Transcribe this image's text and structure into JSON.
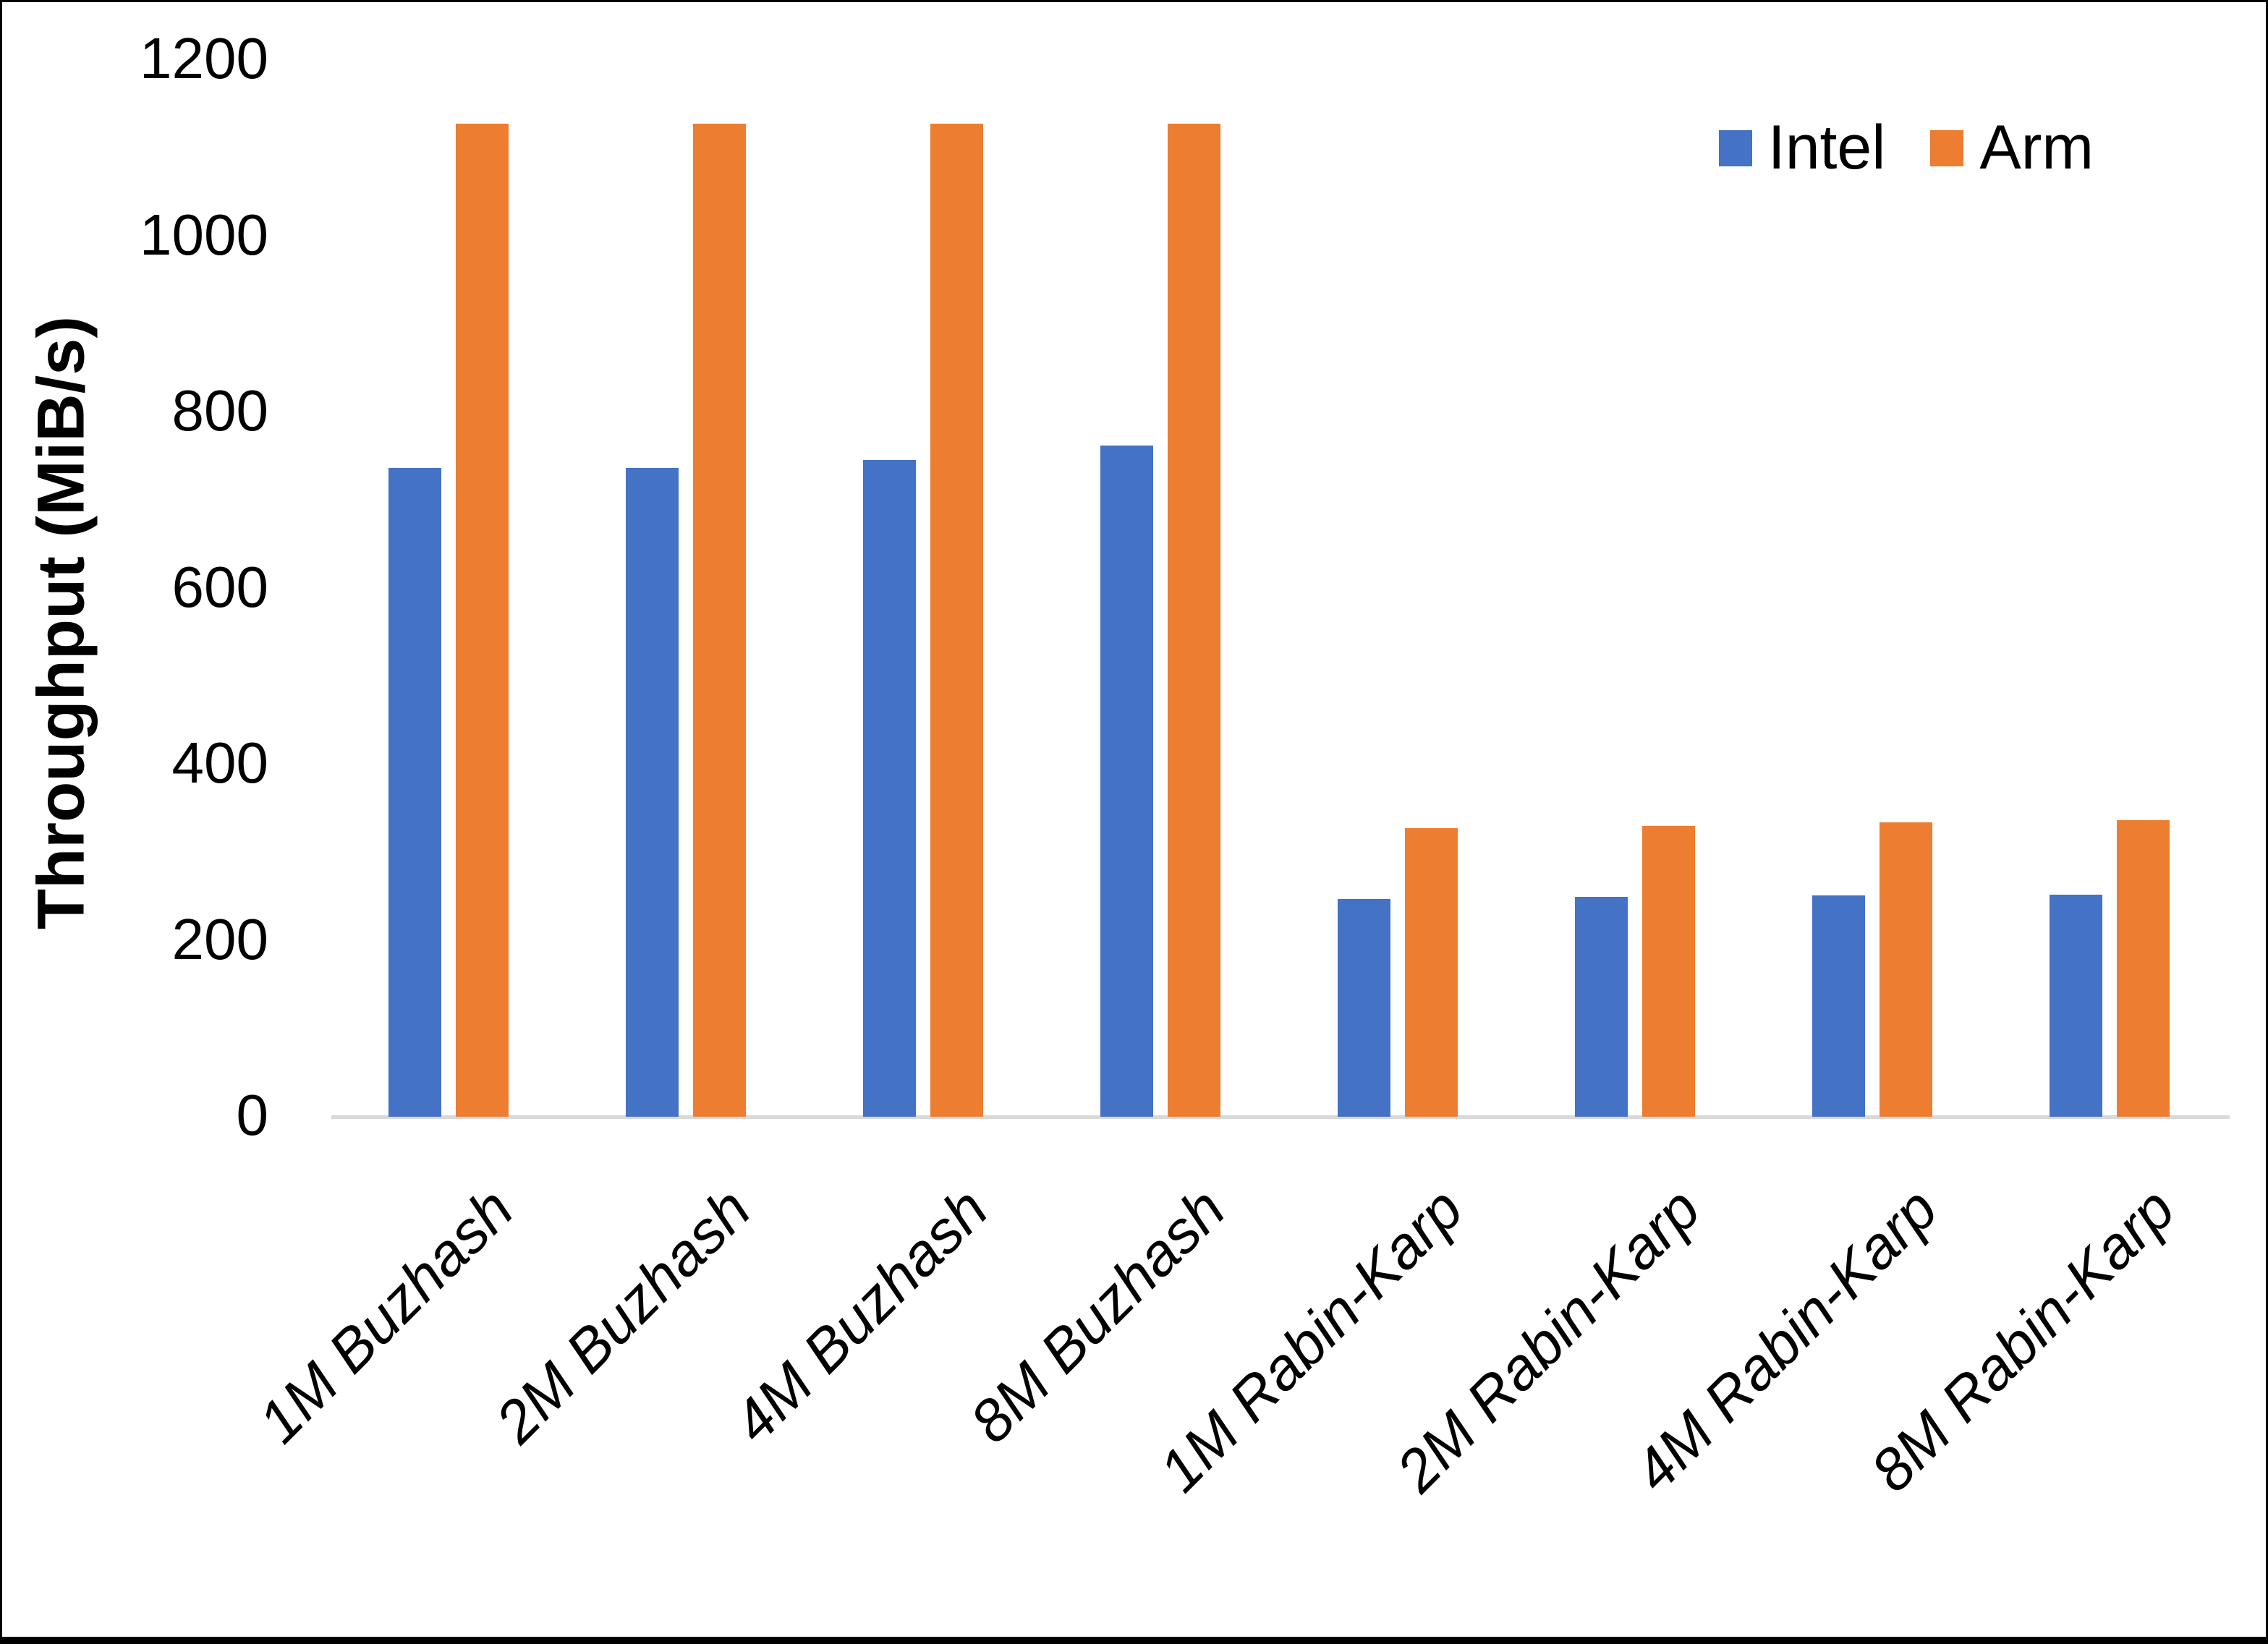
{
  "figure": {
    "background": "#ffffff",
    "border_color": "#000000"
  },
  "chart_data": {
    "type": "bar",
    "title": "",
    "ylabel": "Throughput (MiB/s)",
    "xlabel": "",
    "ylim": [
      0,
      1200
    ],
    "yticks": [
      0,
      200,
      400,
      600,
      800,
      1000,
      1200
    ],
    "grid": false,
    "legend_position": "top-right",
    "axis_line_color": "#D9D9D9",
    "text_color": "#000000",
    "categories": [
      "1M Buzhash",
      "2M Buzhash",
      "4M Buzhash",
      "8M Buzhash",
      "1M Rabin-Karp",
      "2M Rabin-Karp",
      "4M Rabin-Karp",
      "8M Rabin-Karp"
    ],
    "series": [
      {
        "name": "Intel",
        "color": "#4472C4",
        "values": [
          737,
          737,
          746,
          762,
          247,
          250,
          251,
          252
        ]
      },
      {
        "name": "Arm",
        "color": "#ED7D31",
        "values": [
          1128,
          1128,
          1128,
          1128,
          328,
          330,
          334,
          337
        ]
      }
    ]
  }
}
